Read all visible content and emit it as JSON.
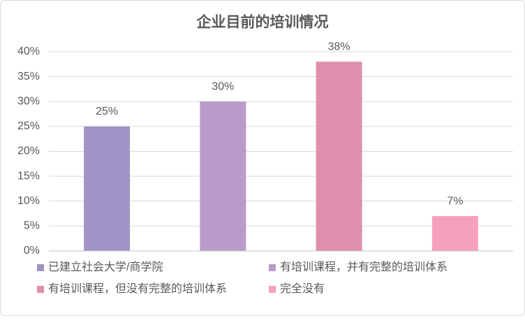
{
  "chart_data": {
    "type": "bar",
    "title": "企业目前的培训情况",
    "categories": [
      "已建立社会大学/商学院",
      "有培训课程，并有完整的培训体系",
      "有培训课程，但没有完整的培训体系",
      "完全没有"
    ],
    "values": [
      25,
      30,
      38,
      7
    ],
    "value_labels": [
      "25%",
      "30%",
      "38%",
      "7%"
    ],
    "colors": [
      "#a293c6",
      "#b99bca",
      "#de8fae",
      "#f5a1bc"
    ],
    "ylim": [
      0,
      40
    ],
    "yticks": [
      {
        "value": 0,
        "label": "0%"
      },
      {
        "value": 5,
        "label": "5%"
      },
      {
        "value": 10,
        "label": "10%"
      },
      {
        "value": 15,
        "label": "15%"
      },
      {
        "value": 20,
        "label": "20%"
      },
      {
        "value": 25,
        "label": "25%"
      },
      {
        "value": 30,
        "label": "30%"
      },
      {
        "value": 35,
        "label": "35%"
      },
      {
        "value": 40,
        "label": "40%"
      }
    ],
    "grid": true
  }
}
